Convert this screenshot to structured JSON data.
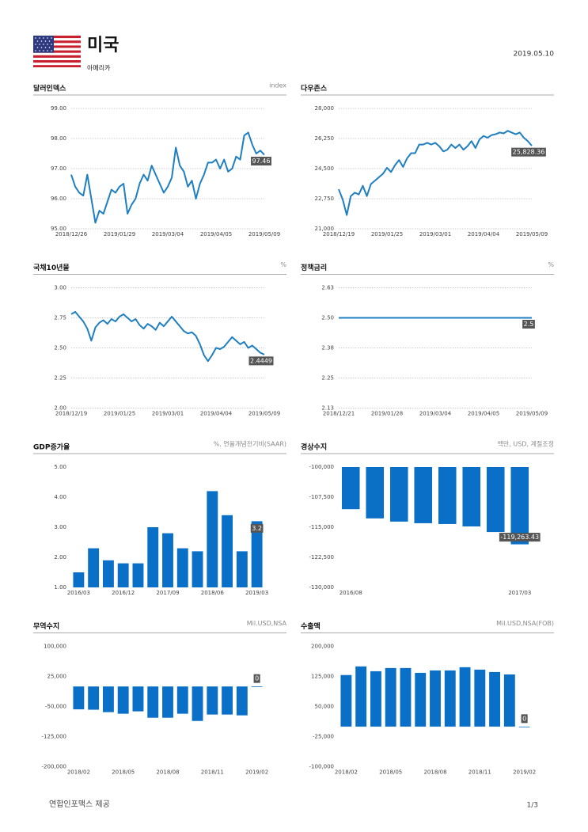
{
  "header": {
    "title": "미국",
    "subtitle": "아메리카",
    "date": "2019.05.10"
  },
  "chart_data": [
    {
      "type": "line",
      "title": "달러인덱스",
      "unit": "index",
      "color": "#1f7fc1",
      "grid": true,
      "categories": [
        "2018/12/26",
        null,
        null,
        null,
        null,
        null,
        null,
        null,
        null,
        null,
        null,
        null,
        "2019/01/29",
        null,
        null,
        null,
        null,
        null,
        null,
        null,
        null,
        null,
        null,
        null,
        "2019/03/04",
        null,
        null,
        null,
        null,
        null,
        null,
        null,
        null,
        null,
        null,
        null,
        "2019/04/05",
        null,
        null,
        null,
        null,
        null,
        null,
        null,
        null,
        null,
        null,
        null,
        "2019/05/09"
      ],
      "values": [
        96.8,
        96.4,
        96.2,
        96.1,
        96.8,
        96.0,
        95.2,
        95.6,
        95.5,
        95.9,
        96.3,
        96.2,
        96.4,
        96.5,
        95.5,
        95.8,
        96.0,
        96.5,
        96.8,
        96.6,
        97.1,
        96.8,
        96.5,
        96.2,
        96.4,
        96.7,
        97.7,
        97.1,
        96.9,
        96.4,
        96.6,
        96.0,
        96.5,
        96.8,
        97.2,
        97.2,
        97.3,
        97.0,
        97.3,
        96.9,
        97.0,
        97.4,
        97.3,
        98.1,
        98.2,
        97.8,
        97.5,
        97.6,
        97.46
      ],
      "value_labels": [
        null,
        null,
        null,
        null,
        null,
        null,
        null,
        null,
        null,
        null,
        null,
        null,
        null,
        null,
        null,
        null,
        null,
        null,
        null,
        null,
        null,
        null,
        null,
        null,
        null,
        null,
        null,
        null,
        null,
        null,
        null,
        null,
        null,
        null,
        null,
        null,
        null,
        null,
        null,
        null,
        null,
        null,
        null,
        null,
        null,
        null,
        null,
        null,
        "97.46"
      ],
      "ylim": [
        95,
        99
      ],
      "yticks": [
        {
          "value": 95,
          "label": "95.00"
        },
        {
          "value": 96,
          "label": "96.00"
        },
        {
          "value": 97,
          "label": "97.00"
        },
        {
          "value": 98,
          "label": "98.00"
        },
        {
          "value": 99,
          "label": "99.00"
        }
      ]
    },
    {
      "type": "line",
      "title": "다우존스",
      "color": "#1f7fc1",
      "grid": true,
      "categories": [
        "2018/12/19",
        null,
        null,
        null,
        null,
        null,
        null,
        null,
        null,
        null,
        null,
        null,
        "2019/01/25",
        null,
        null,
        null,
        null,
        null,
        null,
        null,
        null,
        null,
        null,
        null,
        "2019/03/01",
        null,
        null,
        null,
        null,
        null,
        null,
        null,
        null,
        null,
        null,
        null,
        "2019/04/04",
        null,
        null,
        null,
        null,
        null,
        null,
        null,
        null,
        null,
        null,
        null,
        "2019/05/09"
      ],
      "values": [
        23300,
        22700,
        21800,
        22900,
        23100,
        23000,
        23500,
        22900,
        23600,
        23800,
        24000,
        24200,
        24550,
        24300,
        24700,
        25000,
        24600,
        25100,
        25400,
        25400,
        25900,
        25900,
        26000,
        25900,
        26000,
        25800,
        25500,
        25600,
        25900,
        25700,
        25900,
        25600,
        25800,
        26100,
        25700,
        26200,
        26400,
        26300,
        26450,
        26500,
        26600,
        26550,
        26700,
        26600,
        26500,
        26600,
        26300,
        26100,
        25828.36
      ],
      "value_labels": [
        null,
        null,
        null,
        null,
        null,
        null,
        null,
        null,
        null,
        null,
        null,
        null,
        null,
        null,
        null,
        null,
        null,
        null,
        null,
        null,
        null,
        null,
        null,
        null,
        null,
        null,
        null,
        null,
        null,
        null,
        null,
        null,
        null,
        null,
        null,
        null,
        null,
        null,
        null,
        null,
        null,
        null,
        null,
        null,
        null,
        null,
        null,
        null,
        "25,828.36"
      ],
      "ylim": [
        21000,
        28000
      ],
      "yticks": [
        {
          "value": 21000,
          "label": "21,000"
        },
        {
          "value": 22750,
          "label": "22,750"
        },
        {
          "value": 24500,
          "label": "24,500"
        },
        {
          "value": 26250,
          "label": "26,250"
        },
        {
          "value": 28000,
          "label": "28,000"
        }
      ]
    },
    {
      "type": "line",
      "title": "국채10년물",
      "unit": "%",
      "color": "#1f7fc1",
      "grid": true,
      "categories": [
        "2018/12/19",
        null,
        null,
        null,
        null,
        null,
        null,
        null,
        null,
        null,
        null,
        null,
        "2019/01/25",
        null,
        null,
        null,
        null,
        null,
        null,
        null,
        null,
        null,
        null,
        null,
        "2019/03/01",
        null,
        null,
        null,
        null,
        null,
        null,
        null,
        null,
        null,
        null,
        null,
        "2019/04/04",
        null,
        null,
        null,
        null,
        null,
        null,
        null,
        null,
        null,
        null,
        null,
        "2019/05/09"
      ],
      "values": [
        2.78,
        2.8,
        2.76,
        2.72,
        2.66,
        2.56,
        2.67,
        2.71,
        2.73,
        2.7,
        2.74,
        2.72,
        2.76,
        2.78,
        2.75,
        2.72,
        2.74,
        2.69,
        2.66,
        2.7,
        2.68,
        2.65,
        2.71,
        2.68,
        2.72,
        2.76,
        2.72,
        2.68,
        2.64,
        2.62,
        2.63,
        2.6,
        2.53,
        2.44,
        2.39,
        2.44,
        2.5,
        2.49,
        2.51,
        2.55,
        2.59,
        2.56,
        2.53,
        2.55,
        2.5,
        2.52,
        2.49,
        2.46,
        2.4449
      ],
      "value_labels": [
        null,
        null,
        null,
        null,
        null,
        null,
        null,
        null,
        null,
        null,
        null,
        null,
        null,
        null,
        null,
        null,
        null,
        null,
        null,
        null,
        null,
        null,
        null,
        null,
        null,
        null,
        null,
        null,
        null,
        null,
        null,
        null,
        null,
        null,
        null,
        null,
        null,
        null,
        null,
        null,
        null,
        null,
        null,
        null,
        null,
        null,
        null,
        null,
        "2.4449"
      ],
      "ylim": [
        2,
        3
      ],
      "yticks": [
        {
          "value": 2,
          "label": "2.00"
        },
        {
          "value": 2.25,
          "label": "2.25"
        },
        {
          "value": 2.5,
          "label": "2.50"
        },
        {
          "value": 2.75,
          "label": "2.75"
        },
        {
          "value": 3,
          "label": "3.00"
        }
      ]
    },
    {
      "type": "line",
      "title": "정책금리",
      "unit": "%",
      "color": "#1f7fc1",
      "grid": true,
      "categories": [
        "2018/12/21",
        null,
        null,
        null,
        null,
        null,
        "2019/01/28",
        null,
        null,
        null,
        null,
        null,
        "2019/03/04",
        null,
        null,
        null,
        null,
        null,
        "2019/04/05",
        null,
        null,
        null,
        null,
        null,
        "2019/05/09"
      ],
      "values": [
        2.5,
        2.5,
        2.5,
        2.5,
        2.5,
        2.5,
        2.5,
        2.5,
        2.5,
        2.5,
        2.5,
        2.5,
        2.5,
        2.5,
        2.5,
        2.5,
        2.5,
        2.5,
        2.5,
        2.5,
        2.5,
        2.5,
        2.5,
        2.5,
        2.5
      ],
      "value_labels": [
        null,
        null,
        null,
        null,
        null,
        null,
        null,
        null,
        null,
        null,
        null,
        null,
        null,
        null,
        null,
        null,
        null,
        null,
        null,
        null,
        null,
        null,
        null,
        null,
        "2.5"
      ],
      "ylim": [
        2.125,
        2.625
      ],
      "yticks": [
        {
          "value": 2.125,
          "label": "2.13"
        },
        {
          "value": 2.25,
          "label": "2.25"
        },
        {
          "value": 2.375,
          "label": "2.38"
        },
        {
          "value": 2.5,
          "label": "2.50"
        },
        {
          "value": 2.625,
          "label": "2.63"
        }
      ]
    },
    {
      "type": "bar",
      "title": "GDP증가율",
      "unit": "%, 연율개념전기비(SAAR)",
      "color": "#0a70c7",
      "grid": false,
      "categories": [
        "2016/03",
        null,
        null,
        "2016/12",
        null,
        null,
        "2017/09",
        null,
        null,
        "2018/06",
        null,
        null,
        "2019/03"
      ],
      "values": [
        1.5,
        2.3,
        1.9,
        1.8,
        1.8,
        3.0,
        2.8,
        2.3,
        2.2,
        4.2,
        3.4,
        2.2,
        3.2
      ],
      "value_labels": [
        null,
        null,
        null,
        null,
        null,
        null,
        null,
        null,
        null,
        null,
        null,
        null,
        "3.2"
      ],
      "ylim": [
        1,
        5
      ],
      "yticks": [
        {
          "value": 1,
          "label": "1.00"
        },
        {
          "value": 2,
          "label": "2.00"
        },
        {
          "value": 3,
          "label": "3.00"
        },
        {
          "value": 4,
          "label": "4.00"
        },
        {
          "value": 5,
          "label": "5.00"
        }
      ]
    },
    {
      "type": "bar",
      "title": "경상수지",
      "unit": "백만, USD, 계절조정",
      "color": "#0a70c7",
      "grid": false,
      "categories": [
        "2016/08",
        null,
        null,
        null,
        null,
        null,
        null,
        "2017/03"
      ],
      "values": [
        -110500,
        -112800,
        -113600,
        -114000,
        -114200,
        -114800,
        -116200,
        -119263.43
      ],
      "value_labels": [
        null,
        null,
        null,
        null,
        null,
        null,
        null,
        "-119,263.43"
      ],
      "ylim": [
        -130000,
        -100000
      ],
      "yticks": [
        {
          "value": -130000,
          "label": "-130,000"
        },
        {
          "value": -122500,
          "label": "-122,500"
        },
        {
          "value": -115000,
          "label": "-115,000"
        },
        {
          "value": -107500,
          "label": "-107,500"
        },
        {
          "value": -100000,
          "label": "-100,000"
        }
      ]
    },
    {
      "type": "bar",
      "title": "무역수지",
      "unit": "Mil.USD,NSA",
      "color": "#0a70c7",
      "grid": false,
      "categories": [
        "2018/02",
        null,
        null,
        "2018/05",
        null,
        null,
        "2018/08",
        null,
        null,
        "2018/11",
        null,
        null,
        "2019/02"
      ],
      "values": [
        -57000,
        -58000,
        -64000,
        -68000,
        -62000,
        -78000,
        -78000,
        -68000,
        -86000,
        -70000,
        -70000,
        -72000,
        0
      ],
      "value_labels": [
        null,
        null,
        null,
        null,
        null,
        null,
        null,
        null,
        null,
        null,
        null,
        null,
        "0"
      ],
      "ylim": [
        -200000,
        100000
      ],
      "yticks": [
        {
          "value": -200000,
          "label": "-200,000"
        },
        {
          "value": -125000,
          "label": "-125,000"
        },
        {
          "value": -50000,
          "label": "-50,000"
        },
        {
          "value": 25000,
          "label": "25,000"
        },
        {
          "value": 100000,
          "label": "100,000"
        }
      ]
    },
    {
      "type": "bar",
      "title": "수출액",
      "unit": "Mil.USD,NSA(FOB)",
      "color": "#0a70c7",
      "grid": false,
      "categories": [
        "2018/02",
        null,
        null,
        "2018/05",
        null,
        null,
        "2018/08",
        null,
        null,
        "2018/11",
        null,
        null,
        "2019/02"
      ],
      "values": [
        128500,
        150000,
        138000,
        146000,
        146000,
        134000,
        140000,
        140000,
        148000,
        142000,
        136000,
        130000,
        0
      ],
      "value_labels": [
        null,
        null,
        null,
        null,
        null,
        null,
        null,
        null,
        null,
        null,
        null,
        null,
        "0"
      ],
      "ylim": [
        -100000,
        200000
      ],
      "yticks": [
        {
          "value": -100000,
          "label": "-100,000"
        },
        {
          "value": -25000,
          "label": "-25,000"
        },
        {
          "value": 50000,
          "label": "50,000"
        },
        {
          "value": 125000,
          "label": "125,000"
        },
        {
          "value": 200000,
          "label": "200,000"
        }
      ]
    }
  ],
  "footer": {
    "source": "연합인포맥스 제공",
    "page": "1/3"
  }
}
